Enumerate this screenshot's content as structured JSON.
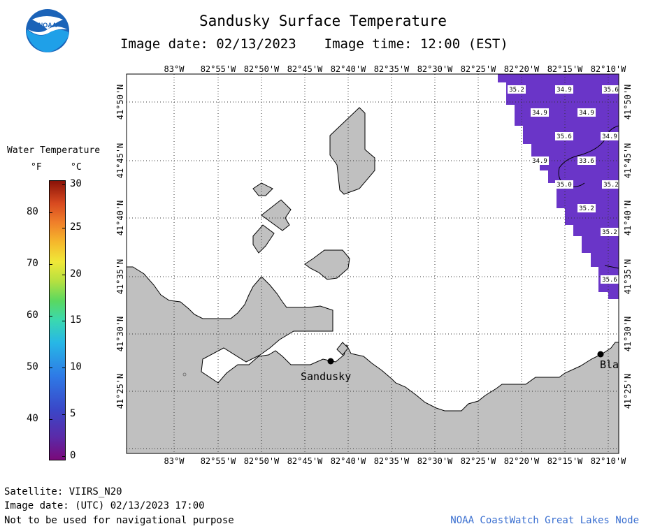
{
  "header": {
    "title": "Sandusky Surface Temperature",
    "image_date": "Image date: 02/13/2023",
    "image_time": "Image time: 12:00 (EST)"
  },
  "map": {
    "longitude_labels": [
      "83°W",
      "82°55'W",
      "82°50'W",
      "82°45'W",
      "82°40'W",
      "82°35'W",
      "82°30'W",
      "82°25'W",
      "82°20'W",
      "82°15'W",
      "82°10'W"
    ],
    "latitude_labels": [
      "41°50'N",
      "41°45'N",
      "41°40'N",
      "41°35'N",
      "41°30'N",
      "41°25'N"
    ],
    "cities": [
      {
        "name": "Sandusky"
      },
      {
        "name": "Bla"
      }
    ],
    "temperature_labels": [
      "35.2",
      "34.9",
      "35.6",
      "34.9",
      "34.9",
      "34.9",
      "35.6",
      "34.9",
      "33.6",
      "35.0",
      "35.2",
      "35.2",
      "35.2",
      "35.6"
    ],
    "colors": {
      "land": "#c0c0c0",
      "ice_white": "#ffffff",
      "water_temp": "#6a35c8"
    }
  },
  "legend": {
    "title": "Water Temperature",
    "unit_f": "°F",
    "unit_c": "°C",
    "f_ticks": [
      "80",
      "70",
      "60",
      "50",
      "40"
    ],
    "c_ticks": [
      "30",
      "25",
      "20",
      "15",
      "10",
      "5",
      "0"
    ]
  },
  "footer": {
    "satellite": "Satellite: VIIRS_N20",
    "utc_date": "Image date: (UTC) 02/13/2023  17:00",
    "disclaimer": "Not to be used for navigational purpose",
    "credit": "NOAA CoastWatch Great Lakes Node"
  }
}
